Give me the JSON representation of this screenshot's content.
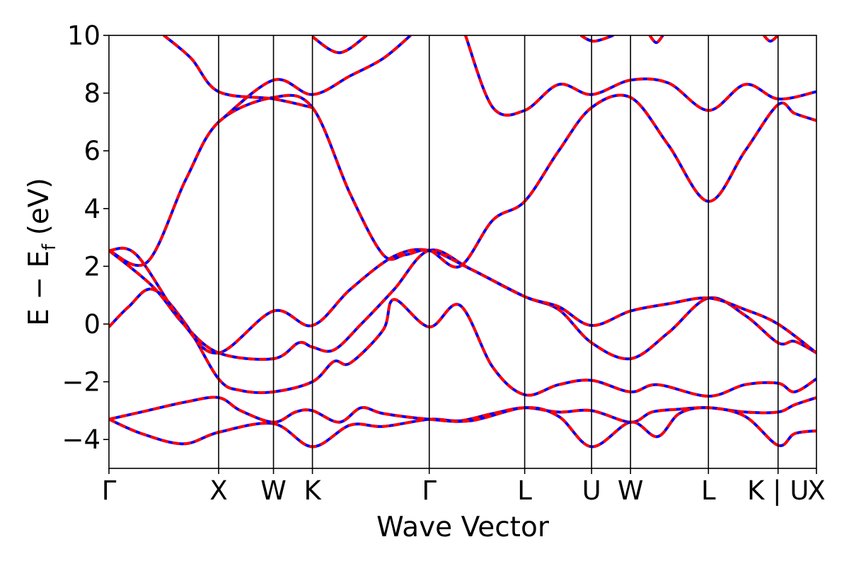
{
  "chart_data": {
    "type": "line",
    "title": "",
    "xlabel": "Wave Vector",
    "ylabel": "E − E_f (eV)",
    "ylabel_parts": {
      "prefix": "E − E",
      "subscript": "f",
      "suffix": " (eV)"
    },
    "ylim": [
      -5,
      10
    ],
    "yticks": [
      {
        "value": 10,
        "label": "10"
      },
      {
        "value": 8,
        "label": "8"
      },
      {
        "value": 6,
        "label": "6"
      },
      {
        "value": 4,
        "label": "4"
      },
      {
        "value": 2,
        "label": "2"
      },
      {
        "value": 0,
        "label": "0"
      },
      {
        "value": -2,
        "label": "−2"
      },
      {
        "value": -4,
        "label": "−4"
      }
    ],
    "xlim": [
      0,
      6.45
    ],
    "kpoints": [
      {
        "label": "Γ",
        "x": 0.0
      },
      {
        "label": "X",
        "x": 1.0
      },
      {
        "label": "W",
        "x": 1.5
      },
      {
        "label": "K",
        "x": 1.855
      },
      {
        "label": "Γ",
        "x": 2.92
      },
      {
        "label": "L",
        "x": 3.79
      },
      {
        "label": "U",
        "x": 4.4
      },
      {
        "label": "W",
        "x": 4.755
      },
      {
        "label": "L",
        "x": 5.465
      },
      {
        "label": "K | U",
        "x": 6.1
      },
      {
        "label": "X",
        "x": 6.45
      }
    ],
    "legend": "none",
    "grid": false,
    "colors": {
      "line_primary": "#0000ff",
      "line_overlay": "#ff0000",
      "axes": "#000000"
    },
    "series": [
      {
        "values": [
          [
            0.0,
            -3.3
          ],
          [
            0.3,
            -3.8
          ],
          [
            0.68,
            -4.15
          ],
          [
            1.0,
            -3.75
          ],
          [
            1.5,
            -3.45
          ],
          [
            1.855,
            -4.25
          ],
          [
            2.2,
            -3.5
          ],
          [
            2.5,
            -3.55
          ],
          [
            2.92,
            -3.3
          ],
          [
            3.2,
            -3.35
          ],
          [
            3.5,
            -3.1
          ],
          [
            3.79,
            -2.9
          ],
          [
            4.1,
            -3.05
          ],
          [
            4.4,
            -3.0
          ],
          [
            4.755,
            -3.4
          ],
          [
            4.95,
            -3.05
          ],
          [
            5.2,
            -2.95
          ],
          [
            5.465,
            -2.9
          ],
          [
            5.8,
            -3.05
          ],
          [
            6.1,
            -3.05
          ],
          [
            6.25,
            -2.8
          ],
          [
            6.45,
            -2.55
          ]
        ]
      },
      {
        "values": [
          [
            0.0,
            -3.3
          ],
          [
            0.35,
            -3.0
          ],
          [
            0.7,
            -2.7
          ],
          [
            1.0,
            -2.55
          ],
          [
            1.2,
            -3.0
          ],
          [
            1.5,
            -3.4
          ],
          [
            1.7,
            -3.05
          ],
          [
            1.855,
            -3.0
          ],
          [
            2.1,
            -3.4
          ],
          [
            2.3,
            -2.9
          ],
          [
            2.5,
            -3.1
          ],
          [
            2.92,
            -3.3
          ],
          [
            3.3,
            -3.35
          ],
          [
            3.79,
            -2.9
          ],
          [
            4.1,
            -3.2
          ],
          [
            4.4,
            -4.25
          ],
          [
            4.755,
            -3.4
          ],
          [
            5.0,
            -3.9
          ],
          [
            5.2,
            -3.1
          ],
          [
            5.465,
            -2.9
          ],
          [
            5.8,
            -3.2
          ],
          [
            6.1,
            -4.2
          ],
          [
            6.25,
            -3.8
          ],
          [
            6.45,
            -3.7
          ]
        ]
      },
      {
        "values": [
          [
            0.0,
            -0.1
          ],
          [
            0.18,
            0.6
          ],
          [
            0.4,
            1.2
          ],
          [
            0.7,
            0.0
          ],
          [
            1.0,
            -1.9
          ],
          [
            1.2,
            -2.3
          ],
          [
            1.5,
            -2.35
          ],
          [
            1.855,
            -2.0
          ],
          [
            2.05,
            -1.3
          ],
          [
            2.2,
            -1.35
          ],
          [
            2.5,
            -0.2
          ],
          [
            2.6,
            0.85
          ],
          [
            2.92,
            -0.1
          ],
          [
            3.2,
            0.65
          ],
          [
            3.5,
            -1.5
          ],
          [
            3.79,
            -2.45
          ],
          [
            4.1,
            -2.1
          ],
          [
            4.4,
            -1.95
          ],
          [
            4.755,
            -2.35
          ],
          [
            5.0,
            -2.1
          ],
          [
            5.465,
            -2.5
          ],
          [
            5.8,
            -2.1
          ],
          [
            6.1,
            -2.05
          ],
          [
            6.25,
            -2.35
          ],
          [
            6.45,
            -1.9
          ]
        ]
      },
      {
        "values": [
          [
            0.0,
            2.55
          ],
          [
            0.4,
            1.3
          ],
          [
            0.68,
            0.0
          ],
          [
            1.0,
            -1.0
          ],
          [
            1.5,
            -1.2
          ],
          [
            1.73,
            -0.65
          ],
          [
            1.855,
            -0.8
          ],
          [
            2.05,
            -0.9
          ],
          [
            2.3,
            0.0
          ],
          [
            2.6,
            1.2
          ],
          [
            2.92,
            2.55
          ],
          [
            3.3,
            1.9
          ],
          [
            3.79,
            0.95
          ],
          [
            4.1,
            0.5
          ],
          [
            4.4,
            -0.65
          ],
          [
            4.755,
            -1.2
          ],
          [
            5.1,
            -0.3
          ],
          [
            5.465,
            0.9
          ],
          [
            5.8,
            0.3
          ],
          [
            6.1,
            -0.65
          ],
          [
            6.25,
            -0.6
          ],
          [
            6.45,
            -1.0
          ]
        ]
      },
      {
        "values": [
          [
            0.0,
            2.55
          ],
          [
            0.25,
            2.4
          ],
          [
            0.68,
            0.0
          ],
          [
            1.0,
            -1.0
          ],
          [
            1.5,
            0.45
          ],
          [
            1.855,
            -0.05
          ],
          [
            2.2,
            1.2
          ],
          [
            2.6,
            2.35
          ],
          [
            2.92,
            2.55
          ],
          [
            3.3,
            1.9
          ],
          [
            3.79,
            0.95
          ],
          [
            4.1,
            0.6
          ],
          [
            4.4,
            -0.05
          ],
          [
            4.755,
            0.45
          ],
          [
            5.1,
            0.7
          ],
          [
            5.465,
            0.9
          ],
          [
            5.8,
            0.5
          ],
          [
            6.1,
            0.0
          ],
          [
            6.45,
            -1.0
          ]
        ]
      },
      {
        "values": [
          [
            0.0,
            2.55
          ],
          [
            0.35,
            2.15
          ],
          [
            0.7,
            5.0
          ],
          [
            1.0,
            7.0
          ],
          [
            1.5,
            7.85
          ],
          [
            1.855,
            7.5
          ],
          [
            2.2,
            4.5
          ],
          [
            2.5,
            2.4
          ],
          [
            2.7,
            2.4
          ],
          [
            2.92,
            2.55
          ],
          [
            3.2,
            2.0
          ],
          [
            3.5,
            3.6
          ],
          [
            3.79,
            4.25
          ],
          [
            4.1,
            6.0
          ],
          [
            4.4,
            7.5
          ],
          [
            4.755,
            7.85
          ],
          [
            5.1,
            6.2
          ],
          [
            5.465,
            4.25
          ],
          [
            5.8,
            6.0
          ],
          [
            6.1,
            7.6
          ],
          [
            6.25,
            7.3
          ],
          [
            6.45,
            7.05
          ]
        ]
      },
      {
        "values": [
          [
            0.5,
            10.0
          ],
          [
            0.75,
            9.2
          ],
          [
            1.0,
            8.05
          ],
          [
            1.5,
            7.8
          ],
          [
            1.855,
            7.5
          ]
        ]
      },
      {
        "values": [
          [
            1.0,
            7.0
          ],
          [
            1.5,
            8.45
          ],
          [
            1.855,
            7.95
          ],
          [
            2.2,
            8.6
          ],
          [
            2.5,
            9.2
          ],
          [
            2.75,
            10.0
          ]
        ]
      },
      {
        "values": [
          [
            1.855,
            9.95
          ],
          [
            2.1,
            9.4
          ],
          [
            2.35,
            10.0
          ]
        ]
      },
      {
        "values": [
          [
            3.25,
            10.0
          ],
          [
            3.5,
            7.5
          ],
          [
            3.79,
            7.4
          ],
          [
            4.1,
            8.3
          ],
          [
            4.4,
            7.95
          ],
          [
            4.755,
            8.45
          ],
          [
            5.1,
            8.35
          ],
          [
            5.465,
            7.4
          ],
          [
            5.8,
            8.3
          ],
          [
            6.1,
            7.8
          ],
          [
            6.45,
            8.05
          ]
        ]
      },
      {
        "values": [
          [
            4.3,
            10.0
          ],
          [
            4.42,
            9.8
          ],
          [
            4.6,
            10.0
          ]
        ]
      },
      {
        "values": [
          [
            4.93,
            10.0
          ],
          [
            4.99,
            9.75
          ],
          [
            5.05,
            10.0
          ]
        ]
      },
      {
        "values": [
          [
            5.97,
            10.0
          ],
          [
            6.03,
            9.8
          ],
          [
            6.1,
            10.0
          ]
        ]
      }
    ]
  }
}
